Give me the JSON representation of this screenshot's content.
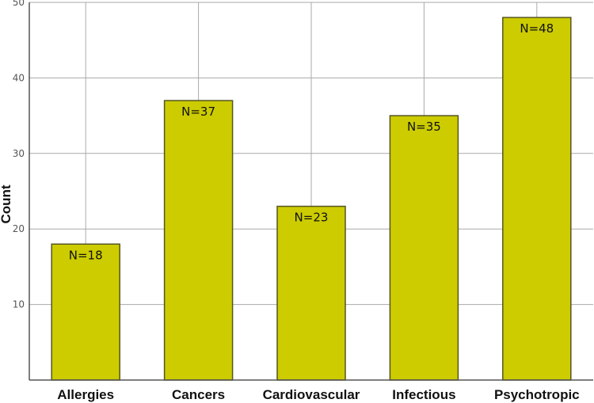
{
  "chart_data": {
    "type": "bar",
    "title": "",
    "xlabel": "",
    "ylabel": "Count",
    "categories": [
      "Allergies",
      "Cancers",
      "Cardiovascular",
      "Infectious",
      "Psychotropic"
    ],
    "values": [
      18,
      37,
      23,
      35,
      48
    ],
    "data_labels": [
      "N=18",
      "N=37",
      "N=23",
      "N=35",
      "N=48"
    ],
    "ylim": [
      0,
      50
    ],
    "yticks": [
      10,
      20,
      30,
      40,
      50
    ],
    "ytick_labels": [
      "10",
      "20",
      "30",
      "40",
      "50"
    ],
    "grid": true,
    "legend": "none",
    "colors": {
      "bar_fill": "#cccc00",
      "bar_stroke": "#555522",
      "grid": "#aaaaaa",
      "axis": "#555555"
    }
  }
}
